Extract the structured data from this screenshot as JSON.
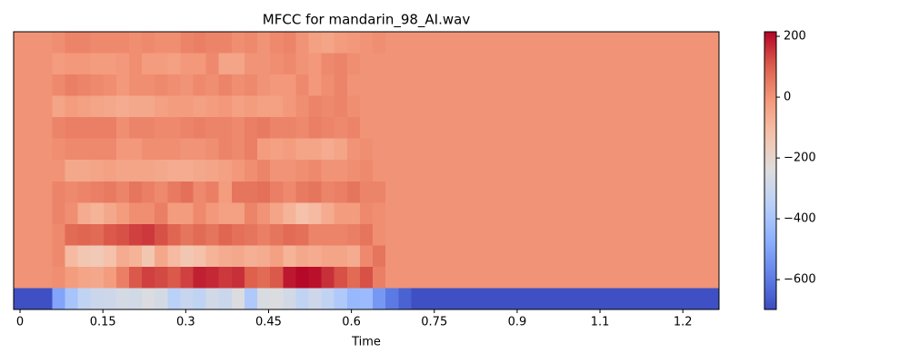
{
  "chart_data": {
    "type": "heatmap",
    "title": "MFCC for mandarin_98_AI.wav",
    "x_label": "Time",
    "cmap": "coolwarm",
    "xlim": [
      -0.0116,
      1.2655
    ],
    "xticks": [
      0,
      0.15,
      0.3,
      0.45,
      0.6,
      0.75,
      0.9,
      {
        "value": 1.05,
        "label": "1.1"
      },
      1.2
    ],
    "zlim": [
      -698,
      215
    ],
    "colorbar_ticks": [
      {
        "value": 200,
        "label": "200"
      },
      {
        "value": 0,
        "label": "0"
      },
      {
        "value": -200,
        "label": "−200"
      },
      {
        "value": -400,
        "label": "−400"
      },
      {
        "value": -600,
        "label": "−600"
      }
    ],
    "z": [
      [
        0,
        0,
        0,
        10,
        30,
        30,
        20,
        20,
        20,
        10,
        20,
        10,
        10,
        30,
        40,
        30,
        30,
        10,
        20,
        0,
        20,
        30,
        0,
        -30,
        -40,
        -20,
        -10,
        0,
        10,
        0,
        0,
        0,
        0,
        0,
        0,
        0,
        0,
        0,
        0,
        0,
        0,
        0,
        0,
        0,
        0,
        0,
        0,
        0,
        0,
        0,
        0,
        0,
        0,
        0,
        0
      ],
      [
        0,
        0,
        0,
        -20,
        -10,
        -10,
        -20,
        -20,
        -10,
        10,
        -20,
        -20,
        -30,
        -10,
        -10,
        20,
        -40,
        -40,
        0,
        0,
        10,
        20,
        0,
        -10,
        20,
        30,
        10,
        0,
        0,
        0,
        0,
        0,
        0,
        0,
        0,
        0,
        0,
        0,
        0,
        0,
        0,
        0,
        0,
        0,
        0,
        0,
        0,
        0,
        0,
        0,
        0,
        0,
        0,
        0,
        0
      ],
      [
        0,
        0,
        0,
        20,
        40,
        30,
        20,
        10,
        -10,
        10,
        10,
        20,
        10,
        0,
        20,
        10,
        30,
        10,
        20,
        0,
        -10,
        -10,
        20,
        -10,
        10,
        30,
        0,
        0,
        0,
        0,
        0,
        0,
        0,
        0,
        0,
        0,
        0,
        0,
        0,
        0,
        0,
        0,
        0,
        0,
        0,
        0,
        0,
        0,
        0,
        0,
        0,
        0,
        0,
        0,
        0
      ],
      [
        0,
        0,
        0,
        -40,
        -20,
        -30,
        -40,
        -50,
        -60,
        -50,
        -50,
        -30,
        -20,
        -20,
        -30,
        -20,
        -10,
        -30,
        -20,
        -30,
        -30,
        -10,
        10,
        30,
        20,
        30,
        10,
        0,
        0,
        0,
        0,
        0,
        0,
        0,
        0,
        0,
        0,
        0,
        0,
        0,
        0,
        0,
        0,
        0,
        0,
        0,
        0,
        0,
        0,
        0,
        0,
        0,
        0,
        0,
        0
      ],
      [
        0,
        0,
        0,
        30,
        40,
        40,
        40,
        40,
        10,
        30,
        30,
        20,
        20,
        30,
        40,
        30,
        30,
        20,
        40,
        50,
        30,
        30,
        20,
        40,
        30,
        20,
        30,
        0,
        0,
        0,
        0,
        0,
        0,
        0,
        0,
        0,
        0,
        0,
        0,
        0,
        0,
        0,
        0,
        0,
        0,
        0,
        0,
        0,
        0,
        0,
        0,
        0,
        0,
        0,
        0
      ],
      [
        0,
        0,
        0,
        10,
        20,
        20,
        20,
        20,
        -10,
        -10,
        10,
        10,
        10,
        0,
        0,
        10,
        30,
        20,
        40,
        -20,
        -30,
        -20,
        -40,
        -40,
        -60,
        -40,
        0,
        10,
        0,
        0,
        0,
        0,
        0,
        0,
        0,
        0,
        0,
        0,
        0,
        0,
        0,
        0,
        0,
        0,
        0,
        0,
        0,
        0,
        0,
        0,
        0,
        0,
        0,
        0,
        0
      ],
      [
        0,
        0,
        0,
        0,
        -50,
        -50,
        -40,
        -30,
        -40,
        -40,
        -40,
        -50,
        -60,
        -60,
        -50,
        -40,
        -30,
        -10,
        10,
        30,
        0,
        0,
        10,
        20,
        0,
        0,
        10,
        20,
        0,
        0,
        0,
        0,
        0,
        0,
        0,
        0,
        0,
        0,
        0,
        0,
        0,
        0,
        0,
        0,
        0,
        0,
        0,
        0,
        0,
        0,
        0,
        0,
        0,
        0,
        0
      ],
      [
        0,
        0,
        0,
        30,
        20,
        30,
        40,
        50,
        30,
        60,
        40,
        20,
        50,
        70,
        20,
        40,
        -20,
        60,
        60,
        70,
        40,
        20,
        50,
        60,
        30,
        40,
        60,
        30,
        30,
        0,
        0,
        0,
        0,
        0,
        0,
        0,
        0,
        0,
        0,
        0,
        0,
        0,
        0,
        0,
        0,
        0,
        0,
        0,
        0,
        0,
        0,
        0,
        0,
        0,
        0
      ],
      [
        0,
        0,
        0,
        30,
        10,
        -60,
        -80,
        -50,
        -20,
        10,
        10,
        40,
        -20,
        -20,
        20,
        -10,
        -30,
        -30,
        30,
        0,
        -40,
        -80,
        -120,
        -100,
        -60,
        -20,
        -20,
        20,
        10,
        0,
        0,
        0,
        0,
        0,
        0,
        0,
        0,
        0,
        0,
        0,
        0,
        0,
        0,
        0,
        0,
        0,
        0,
        0,
        0,
        0,
        0,
        0,
        0,
        0,
        0
      ],
      [
        0,
        0,
        0,
        20,
        80,
        90,
        80,
        110,
        120,
        140,
        150,
        120,
        90,
        60,
        80,
        60,
        90,
        70,
        60,
        40,
        60,
        80,
        70,
        30,
        30,
        30,
        40,
        60,
        10,
        0,
        0,
        0,
        0,
        0,
        0,
        0,
        0,
        0,
        0,
        0,
        0,
        0,
        0,
        0,
        0,
        0,
        0,
        0,
        0,
        0,
        0,
        0,
        0,
        0,
        0
      ],
      [
        0,
        0,
        0,
        20,
        -100,
        -140,
        -150,
        -120,
        -60,
        -80,
        -140,
        -50,
        -100,
        -140,
        -120,
        -80,
        -60,
        -50,
        -70,
        -60,
        -30,
        -80,
        -50,
        -60,
        -40,
        -40,
        -60,
        20,
        60,
        0,
        0,
        0,
        0,
        0,
        0,
        0,
        0,
        0,
        0,
        0,
        0,
        0,
        0,
        0,
        0,
        0,
        0,
        0,
        0,
        0,
        0,
        0,
        0,
        0,
        0
      ],
      [
        0,
        0,
        0,
        10,
        -20,
        -40,
        -50,
        -20,
        40,
        110,
        140,
        130,
        110,
        140,
        180,
        170,
        150,
        160,
        100,
        80,
        110,
        190,
        210,
        200,
        160,
        120,
        80,
        120,
        40,
        0,
        0,
        0,
        0,
        0,
        0,
        0,
        0,
        0,
        0,
        0,
        0,
        0,
        0,
        0,
        0,
        0,
        0,
        0,
        0,
        0,
        0,
        0,
        0,
        0,
        0
      ],
      [
        -690,
        -690,
        -690,
        -500,
        -400,
        -330,
        -300,
        -290,
        -270,
        -280,
        -250,
        -270,
        -350,
        -310,
        -330,
        -280,
        -300,
        -250,
        -380,
        -260,
        -250,
        -280,
        -330,
        -290,
        -330,
        -380,
        -440,
        -430,
        -530,
        -600,
        -650,
        -690,
        -690,
        -690,
        -690,
        -690,
        -690,
        -690,
        -690,
        -690,
        -690,
        -690,
        -690,
        -690,
        -690,
        -690,
        -690,
        -690,
        -690,
        -690,
        -690,
        -690,
        -690,
        -690,
        -690
      ]
    ]
  }
}
